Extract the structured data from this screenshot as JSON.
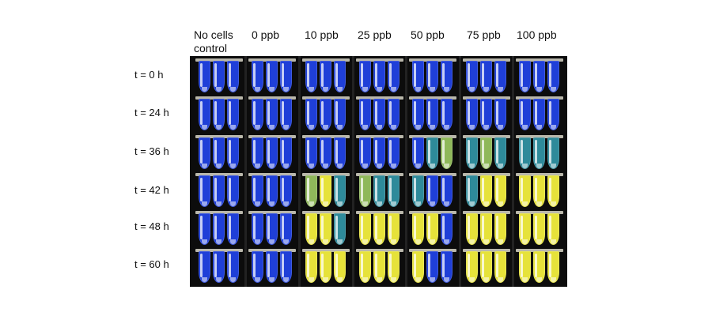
{
  "column_headers": [
    {
      "line1": "No cells",
      "line2": "control"
    },
    {
      "line1": "0 ppb",
      "line2": ""
    },
    {
      "line1": "10 ppb",
      "line2": ""
    },
    {
      "line1": "25 ppb",
      "line2": ""
    },
    {
      "line1": "50 ppb",
      "line2": ""
    },
    {
      "line1": "75 ppb",
      "line2": ""
    },
    {
      "line1": "100 ppb",
      "line2": ""
    }
  ],
  "row_labels": [
    "t = 0 h",
    "t = 24 h",
    "t = 36 h",
    "t = 42 h",
    "t = 48 h",
    "t = 60 h"
  ],
  "tube_colors": {
    "blue": "#1f3fd8",
    "teal": "#2e8a9a",
    "green": "#8fb85a",
    "yellow": "#e6e23a"
  },
  "tube_states": [
    [
      [
        "blue",
        "blue",
        "blue"
      ],
      [
        "blue",
        "blue",
        "blue"
      ],
      [
        "blue",
        "blue",
        "blue"
      ],
      [
        "blue",
        "blue",
        "blue"
      ],
      [
        "blue",
        "blue",
        "blue"
      ],
      [
        "blue",
        "blue",
        "blue"
      ],
      [
        "blue",
        "blue",
        "blue"
      ]
    ],
    [
      [
        "blue",
        "blue",
        "blue"
      ],
      [
        "blue",
        "blue",
        "blue"
      ],
      [
        "blue",
        "blue",
        "blue"
      ],
      [
        "blue",
        "blue",
        "blue"
      ],
      [
        "blue",
        "blue",
        "blue"
      ],
      [
        "blue",
        "blue",
        "blue"
      ],
      [
        "blue",
        "blue",
        "blue"
      ]
    ],
    [
      [
        "blue",
        "blue",
        "blue"
      ],
      [
        "blue",
        "blue",
        "blue"
      ],
      [
        "blue",
        "blue",
        "blue"
      ],
      [
        "blue",
        "blue",
        "blue"
      ],
      [
        "blue",
        "teal",
        "green"
      ],
      [
        "teal",
        "green",
        "teal"
      ],
      [
        "teal",
        "teal",
        "teal"
      ]
    ],
    [
      [
        "blue",
        "blue",
        "blue"
      ],
      [
        "blue",
        "blue",
        "blue"
      ],
      [
        "green",
        "yellow",
        "teal"
      ],
      [
        "green",
        "teal",
        "teal"
      ],
      [
        "teal",
        "blue",
        "blue"
      ],
      [
        "teal",
        "yellow",
        "yellow"
      ],
      [
        "yellow",
        "yellow",
        "yellow"
      ]
    ],
    [
      [
        "blue",
        "blue",
        "blue"
      ],
      [
        "blue",
        "blue",
        "blue"
      ],
      [
        "yellow",
        "yellow",
        "teal"
      ],
      [
        "yellow",
        "yellow",
        "yellow"
      ],
      [
        "yellow",
        "yellow",
        "blue"
      ],
      [
        "yellow",
        "yellow",
        "yellow"
      ],
      [
        "yellow",
        "yellow",
        "yellow"
      ]
    ],
    [
      [
        "blue",
        "blue",
        "blue"
      ],
      [
        "blue",
        "blue",
        "blue"
      ],
      [
        "yellow",
        "yellow",
        "yellow"
      ],
      [
        "yellow",
        "yellow",
        "yellow"
      ],
      [
        "yellow",
        "blue",
        "blue"
      ],
      [
        "yellow",
        "yellow",
        "yellow"
      ],
      [
        "yellow",
        "yellow",
        "yellow"
      ]
    ]
  ]
}
